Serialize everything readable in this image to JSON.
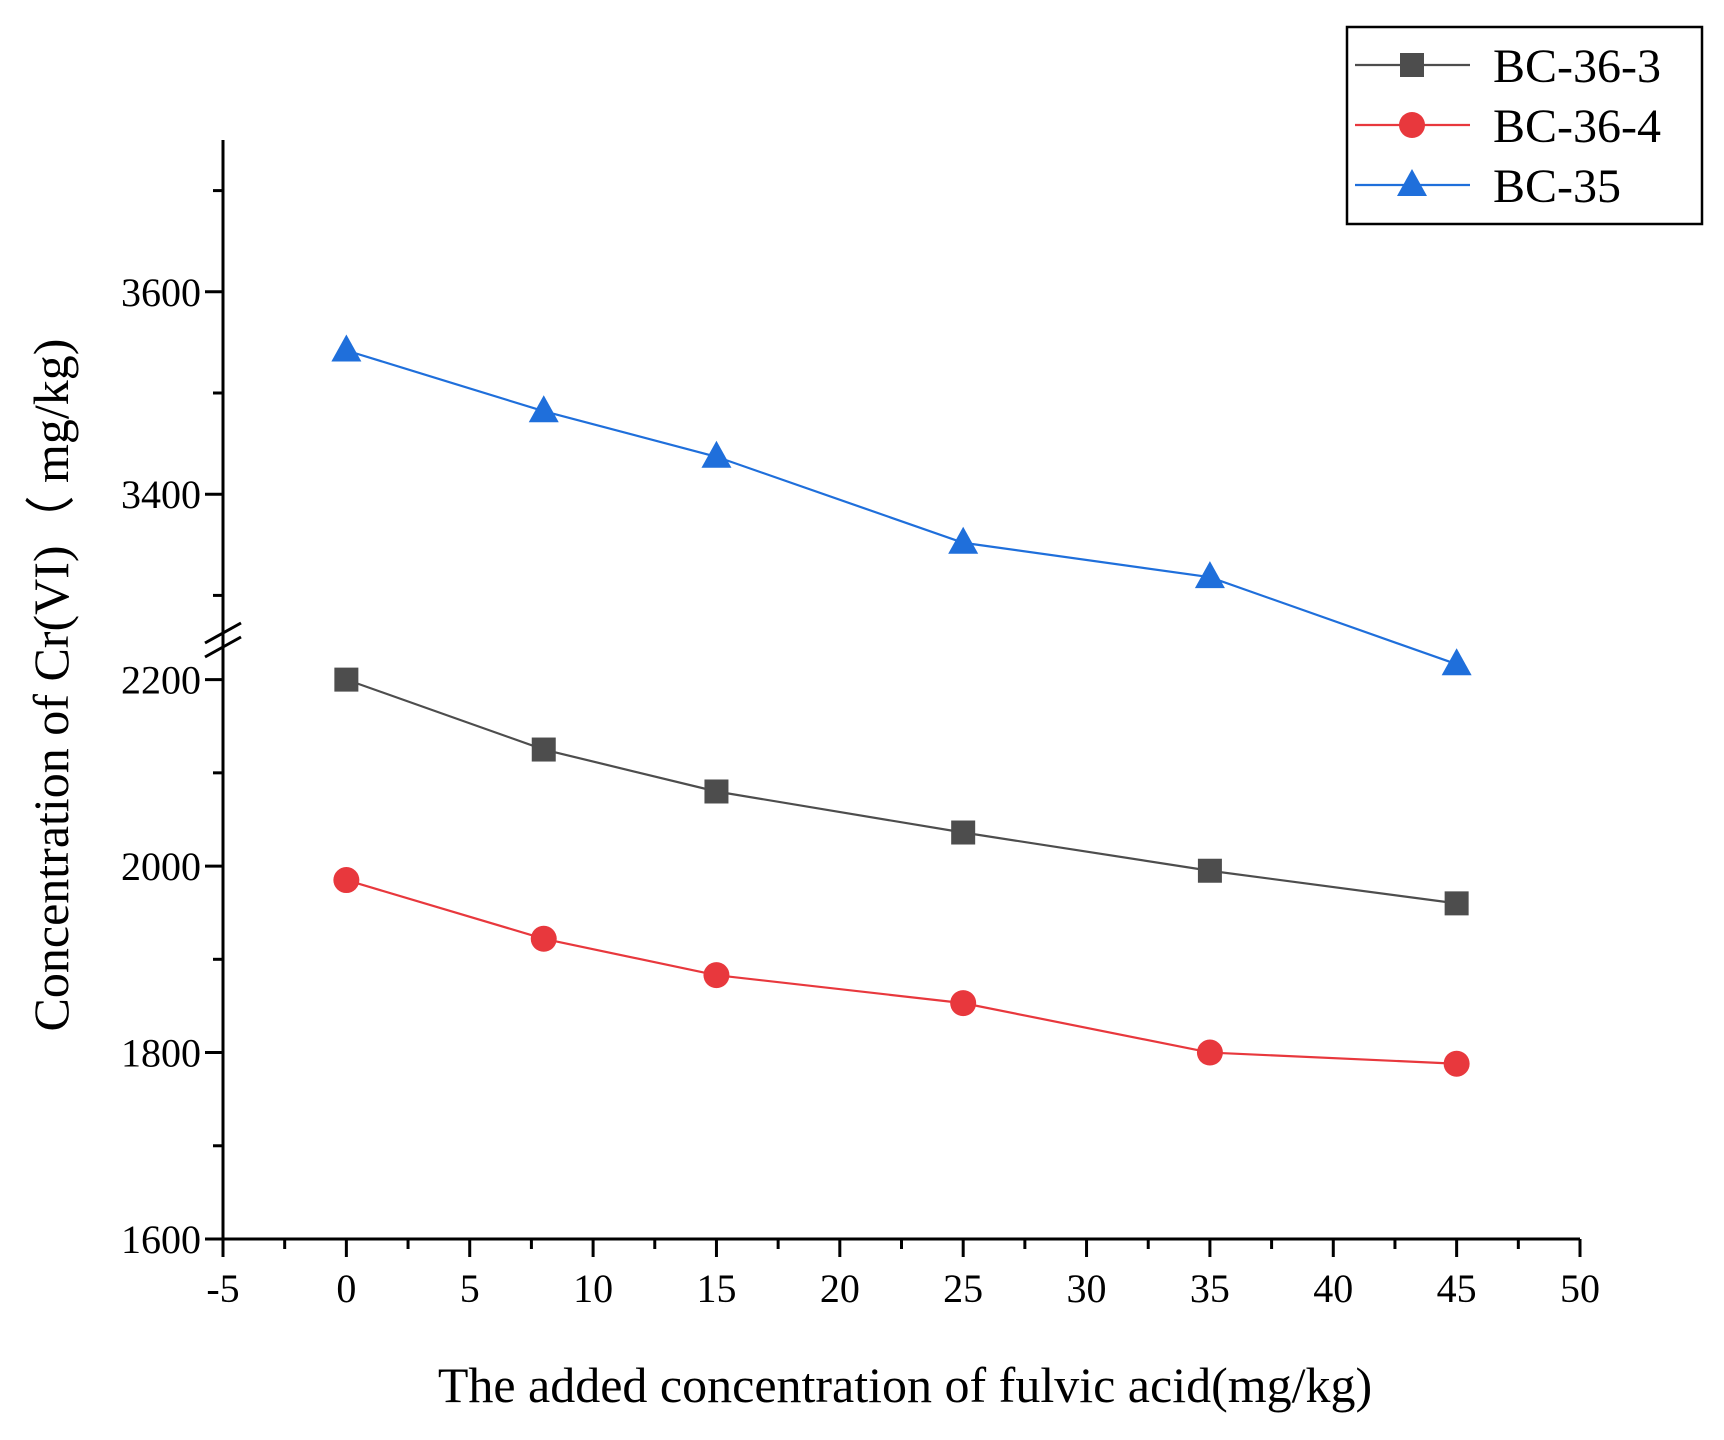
{
  "chart_data": {
    "type": "line",
    "title": "",
    "xlabel": "The added concentration of fulvic acid(mg/kg)",
    "ylabel": "Concentration of Cr(VI)（ mg/kg)",
    "x": [
      0,
      8,
      15,
      25,
      35,
      45
    ],
    "xlim": [
      -5,
      50
    ],
    "x_ticks": [
      "-5",
      "0",
      "5",
      "10",
      "15",
      "20",
      "25",
      "30",
      "35",
      "40",
      "45",
      "50"
    ],
    "y_axis_break": true,
    "y_segments": [
      {
        "range": [
          1600,
          2250
        ],
        "ticks": [
          "1600",
          "1800",
          "2000",
          "2200"
        ]
      },
      {
        "range": [
          3250,
          3750
        ],
        "ticks": [
          "3400",
          "3600"
        ]
      }
    ],
    "legend_position": "top-right",
    "series": [
      {
        "name": "BC-36-3",
        "color": "#4d4d4d",
        "marker": "square",
        "values": [
          2200,
          2125,
          2080,
          2036,
          1995,
          1960
        ]
      },
      {
        "name": "BC-36-4",
        "color": "#e8383d",
        "marker": "circle",
        "values": [
          1985,
          1922,
          1883,
          1853,
          1800,
          1788
        ]
      },
      {
        "name": "BC-35",
        "color": "#1f6fdb",
        "marker": "triangle",
        "values": [
          3542,
          3482,
          3437,
          3352,
          3318,
          3232
        ]
      }
    ]
  }
}
